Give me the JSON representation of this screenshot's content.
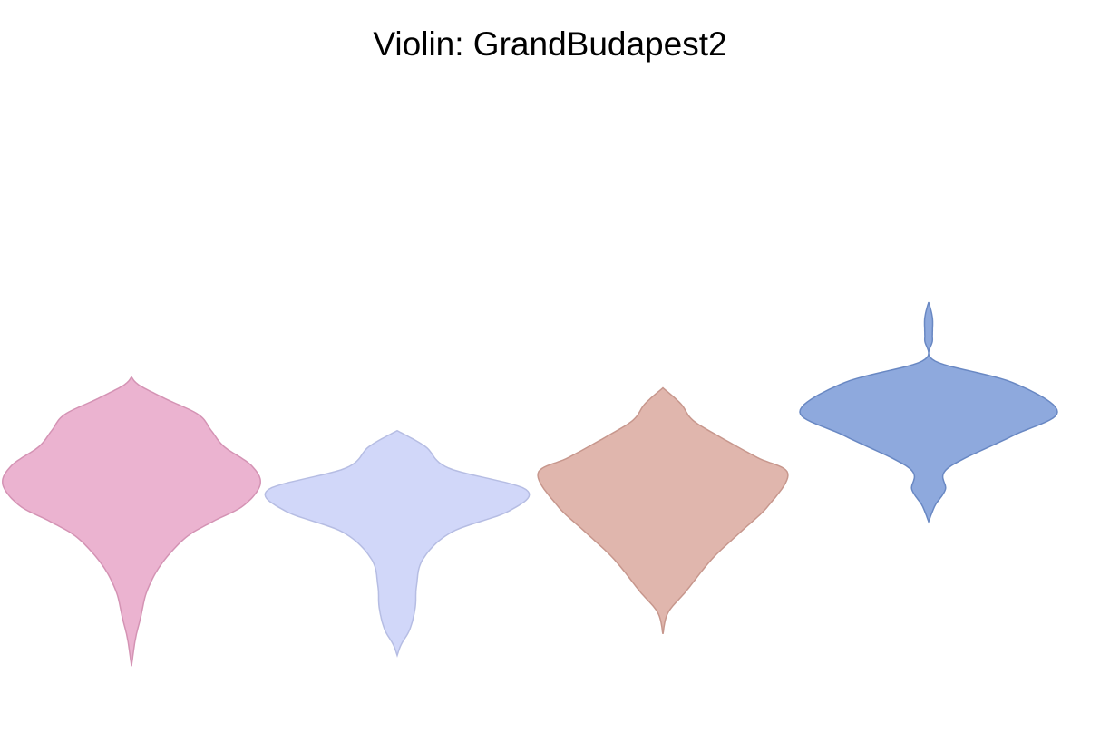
{
  "chart_data": {
    "type": "violin",
    "title": "Violin: GrandBudapest2",
    "xlabel": "",
    "ylabel": "",
    "axes_visible": false,
    "grid": false,
    "ylim": [
      0,
      10
    ],
    "series": [
      {
        "color": "#E6A0C4",
        "fill_opacity": 0.8,
        "min": 0.3,
        "max": 5.7,
        "profile": [
          [
            0.3,
            0.0
          ],
          [
            0.8,
            0.03
          ],
          [
            1.2,
            0.07
          ],
          [
            1.7,
            0.12
          ],
          [
            2.2,
            0.23
          ],
          [
            2.7,
            0.42
          ],
          [
            3.0,
            0.63
          ],
          [
            3.3,
            0.87
          ],
          [
            3.7,
            1.0
          ],
          [
            4.05,
            0.93
          ],
          [
            4.4,
            0.72
          ],
          [
            4.7,
            0.62
          ],
          [
            5.0,
            0.52
          ],
          [
            5.3,
            0.26
          ],
          [
            5.55,
            0.06
          ],
          [
            5.7,
            0.0
          ]
        ]
      },
      {
        "color": "#C6CDF7",
        "fill_opacity": 0.8,
        "min": 0.5,
        "max": 4.7,
        "profile": [
          [
            0.5,
            0.0
          ],
          [
            0.7,
            0.03
          ],
          [
            1.0,
            0.1
          ],
          [
            1.4,
            0.14
          ],
          [
            1.8,
            0.15
          ],
          [
            2.3,
            0.2
          ],
          [
            2.8,
            0.42
          ],
          [
            3.2,
            0.87
          ],
          [
            3.6,
            1.0
          ],
          [
            4.0,
            0.4
          ],
          [
            4.4,
            0.22
          ],
          [
            4.7,
            0.0
          ]
        ]
      },
      {
        "color": "#D8A499",
        "fill_opacity": 0.8,
        "min": 0.9,
        "max": 5.5,
        "profile": [
          [
            0.9,
            0.0
          ],
          [
            1.3,
            0.04
          ],
          [
            1.7,
            0.18
          ],
          [
            2.3,
            0.38
          ],
          [
            2.8,
            0.6
          ],
          [
            3.3,
            0.82
          ],
          [
            3.9,
            0.97
          ],
          [
            4.2,
            0.73
          ],
          [
            4.6,
            0.43
          ],
          [
            4.9,
            0.23
          ],
          [
            5.2,
            0.14
          ],
          [
            5.5,
            0.0
          ]
        ]
      },
      {
        "color": "#7294D4",
        "fill_opacity": 0.8,
        "min": 3.0,
        "max": 7.1,
        "profile": [
          [
            3.0,
            0.0
          ],
          [
            3.3,
            0.05
          ],
          [
            3.6,
            0.13
          ],
          [
            4.0,
            0.15
          ],
          [
            4.6,
            0.65
          ],
          [
            5.05,
            1.0
          ],
          [
            5.6,
            0.65
          ],
          [
            6.0,
            0.05
          ],
          [
            6.4,
            0.03
          ],
          [
            6.8,
            0.03
          ],
          [
            7.1,
            0.0
          ]
        ]
      }
    ]
  }
}
